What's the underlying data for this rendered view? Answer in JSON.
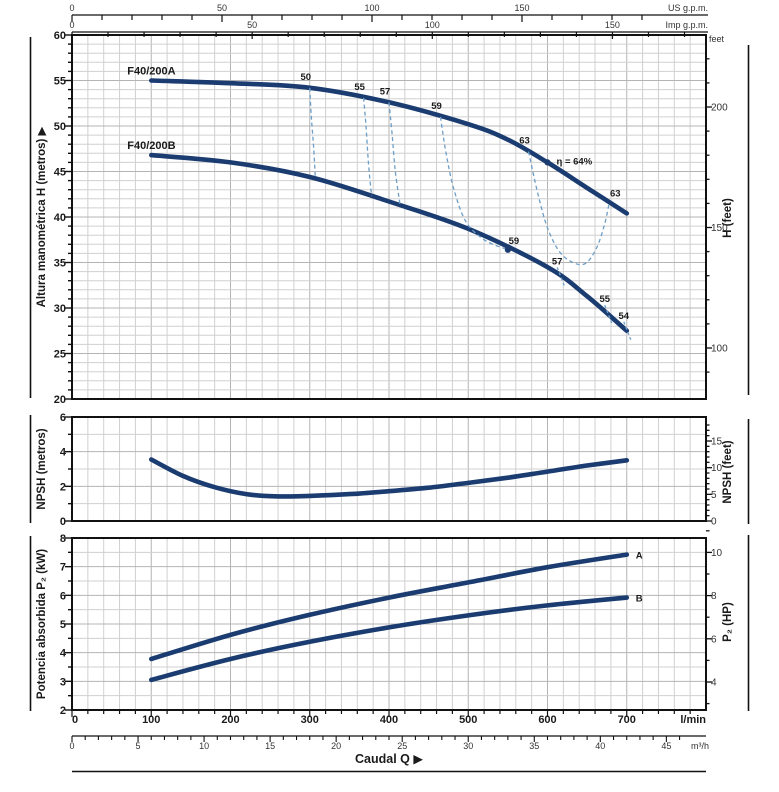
{
  "colors": {
    "curve": "#1b3c70",
    "iso": "#6d9ec7",
    "grid_minor": "#d0d0d0",
    "grid_major": "#b4b4b4",
    "border": "#111111",
    "text": "#1a1a1a"
  },
  "top_axes": {
    "us": {
      "unit": "US g.p.m.",
      "labels": [
        0,
        50,
        100,
        150
      ]
    },
    "imp": {
      "unit": "Imp g.p.m.",
      "labels": [
        0,
        50,
        100,
        150
      ]
    },
    "feet_corner": "feet"
  },
  "bottom_axes": {
    "lpm": {
      "unit": "l/min",
      "labels": [
        0,
        100,
        200,
        300,
        400,
        500,
        600,
        700
      ]
    },
    "m3h": {
      "unit": "m³/h",
      "labels": [
        0,
        5,
        10,
        15,
        20,
        25,
        30,
        35,
        40,
        45
      ]
    },
    "xlabel": "Caudal Q ▶"
  },
  "chart_data": [
    {
      "id": "head",
      "type": "line",
      "ylabel_left": "Altura manométrica H  (metros) ▶",
      "ylabel_right": "H (feet)",
      "xlabel": "Caudal Q (l/min)",
      "y_left": {
        "min": 20,
        "max": 60,
        "labels": [
          60,
          55,
          50,
          45,
          40,
          35,
          30,
          25,
          20
        ]
      },
      "y_right": {
        "labels": [
          200,
          150,
          100
        ]
      },
      "series": [
        {
          "name": "F40/200A",
          "points": [
            [
              100,
              55.0
            ],
            [
              200,
              54.7
            ],
            [
              300,
              54.2
            ],
            [
              400,
              52.6
            ],
            [
              500,
              50.2
            ],
            [
              550,
              48.5
            ],
            [
              600,
              46.0
            ],
            [
              650,
              43.2
            ],
            [
              700,
              40.4
            ]
          ]
        },
        {
          "name": "F40/200B",
          "points": [
            [
              100,
              46.8
            ],
            [
              200,
              46.0
            ],
            [
              300,
              44.4
            ],
            [
              400,
              41.7
            ],
            [
              500,
              38.7
            ],
            [
              600,
              34.5
            ],
            [
              650,
              31.3
            ],
            [
              700,
              27.5
            ]
          ]
        }
      ],
      "efficiency": {
        "iso_lines": [
          {
            "label": "50",
            "points": [
              [
                300,
                54.2
              ],
              [
                302,
                51.0
              ],
              [
                305,
                47.5
              ],
              [
                307,
                44.4
              ]
            ]
          },
          {
            "label": "55",
            "points": [
              [
                368,
                53.1
              ],
              [
                371,
                50.0
              ],
              [
                374,
                46.0
              ],
              [
                378,
                42.3
              ]
            ]
          },
          {
            "label": "57",
            "points": [
              [
                400,
                52.6
              ],
              [
                404,
                49.0
              ],
              [
                408,
                45.0
              ],
              [
                414,
                41.3
              ]
            ]
          },
          {
            "label": "59",
            "points": [
              [
                465,
                51.0
              ],
              [
                472,
                47.0
              ],
              [
                482,
                43.0
              ],
              [
                497,
                39.5
              ],
              [
                520,
                37.5
              ],
              [
                550,
                36.4
              ]
            ],
            "end_dot": true,
            "end_label": "59"
          },
          {
            "label": "63",
            "points": [
              [
                576,
                47.2
              ],
              [
                588,
                42.5
              ],
              [
                600,
                38.8
              ],
              [
                615,
                36.2
              ],
              [
                632,
                35.0
              ],
              [
                648,
                34.9
              ],
              [
                662,
                36.6
              ],
              [
                672,
                39.2
              ],
              [
                678,
                41.6
              ]
            ],
            "end_label": "63"
          }
        ],
        "bep": {
          "label": "η = 64%",
          "point": [
            600,
            46.0
          ]
        },
        "b_marks": [
          {
            "label": "57",
            "q": 616
          },
          {
            "label": "55",
            "q": 676
          },
          {
            "label": "54",
            "q": 700
          }
        ]
      }
    },
    {
      "id": "npsh",
      "type": "line",
      "ylabel_left": "NPSH (metros)",
      "ylabel_right": "NPSH (feet)",
      "y_left": {
        "min": 0,
        "max": 6,
        "labels": [
          6,
          4,
          2,
          0
        ]
      },
      "y_right": {
        "labels": [
          15,
          10,
          5,
          0
        ]
      },
      "series": [
        {
          "points": [
            [
              100,
              3.55
            ],
            [
              140,
              2.6
            ],
            [
              180,
              1.95
            ],
            [
              220,
              1.55
            ],
            [
              260,
              1.42
            ],
            [
              300,
              1.45
            ],
            [
              350,
              1.55
            ],
            [
              400,
              1.72
            ],
            [
              450,
              1.92
            ],
            [
              500,
              2.2
            ],
            [
              550,
              2.5
            ],
            [
              600,
              2.85
            ],
            [
              650,
              3.2
            ],
            [
              700,
              3.5
            ]
          ]
        }
      ]
    },
    {
      "id": "p2",
      "type": "line",
      "ylabel_left": "Potencia absorbida P₂ (kW)",
      "ylabel_right": "P₂ (HP)",
      "y_left": {
        "min": 2,
        "max": 8,
        "labels": [
          8,
          7,
          6,
          5,
          4,
          3,
          2
        ]
      },
      "y_right": {
        "labels": [
          10,
          8,
          6,
          4
        ]
      },
      "series": [
        {
          "end_label": "A",
          "points": [
            [
              100,
              3.78
            ],
            [
              200,
              4.62
            ],
            [
              300,
              5.32
            ],
            [
              400,
              5.92
            ],
            [
              500,
              6.45
            ],
            [
              600,
              6.98
            ],
            [
              700,
              7.42
            ]
          ]
        },
        {
          "end_label": "B",
          "points": [
            [
              100,
              3.05
            ],
            [
              200,
              3.78
            ],
            [
              300,
              4.38
            ],
            [
              400,
              4.88
            ],
            [
              500,
              5.3
            ],
            [
              600,
              5.65
            ],
            [
              700,
              5.92
            ]
          ]
        }
      ]
    }
  ]
}
